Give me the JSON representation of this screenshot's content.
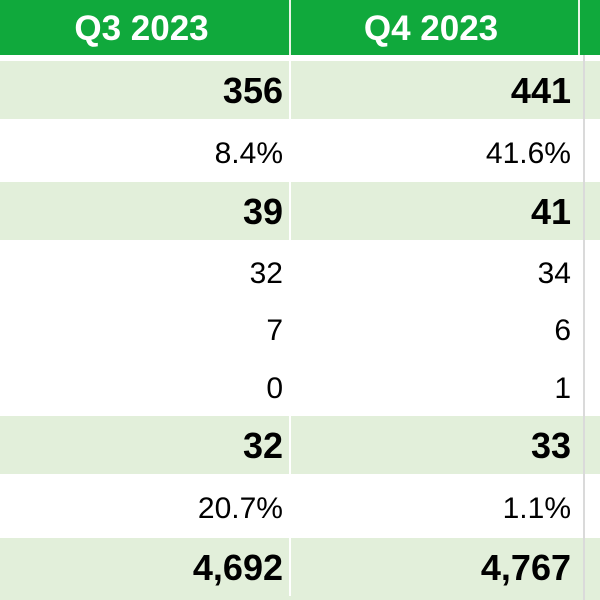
{
  "columns": [
    "Q3 2023",
    "Q4 2023"
  ],
  "rows": [
    {
      "q3": "356",
      "q4": "441",
      "style": "bold-shaded"
    },
    {
      "q3": "8.4%",
      "q4": "41.6%",
      "style": "plain"
    },
    {
      "q3": "39",
      "q4": "41",
      "style": "bold-shaded"
    },
    {
      "q3": "32",
      "q4": "34",
      "style": "plain"
    },
    {
      "q3": "7",
      "q4": "6",
      "style": "plain"
    },
    {
      "q3": "0",
      "q4": "1",
      "style": "plain"
    },
    {
      "q3": "32",
      "q4": "33",
      "style": "bold-shaded"
    },
    {
      "q3": "20.7%",
      "q4": "1.1%",
      "style": "plain"
    },
    {
      "q3": "4,692",
      "q4": "4,767",
      "style": "bold-shaded"
    }
  ],
  "colors": {
    "header_bg": "#10a93c",
    "header_text": "#ffffff",
    "shaded_row": "#e2efda"
  }
}
